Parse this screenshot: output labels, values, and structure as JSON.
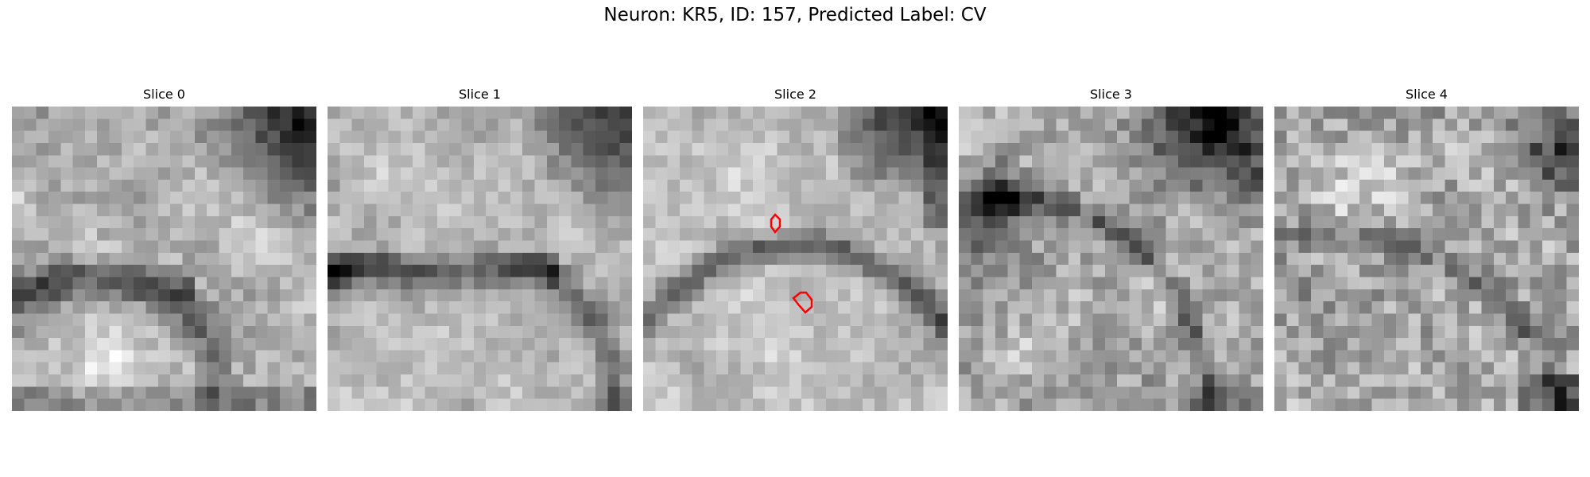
{
  "figure": {
    "title": "Neuron: KR5, ID: 157, Predicted Label: CV"
  },
  "panels": [
    {
      "title": "Slice 0"
    },
    {
      "title": "Slice 1"
    },
    {
      "title": "Slice 2"
    },
    {
      "title": "Slice 3"
    },
    {
      "title": "Slice 4"
    }
  ],
  "contour_color": "#ff0000",
  "colormap": "gray"
}
